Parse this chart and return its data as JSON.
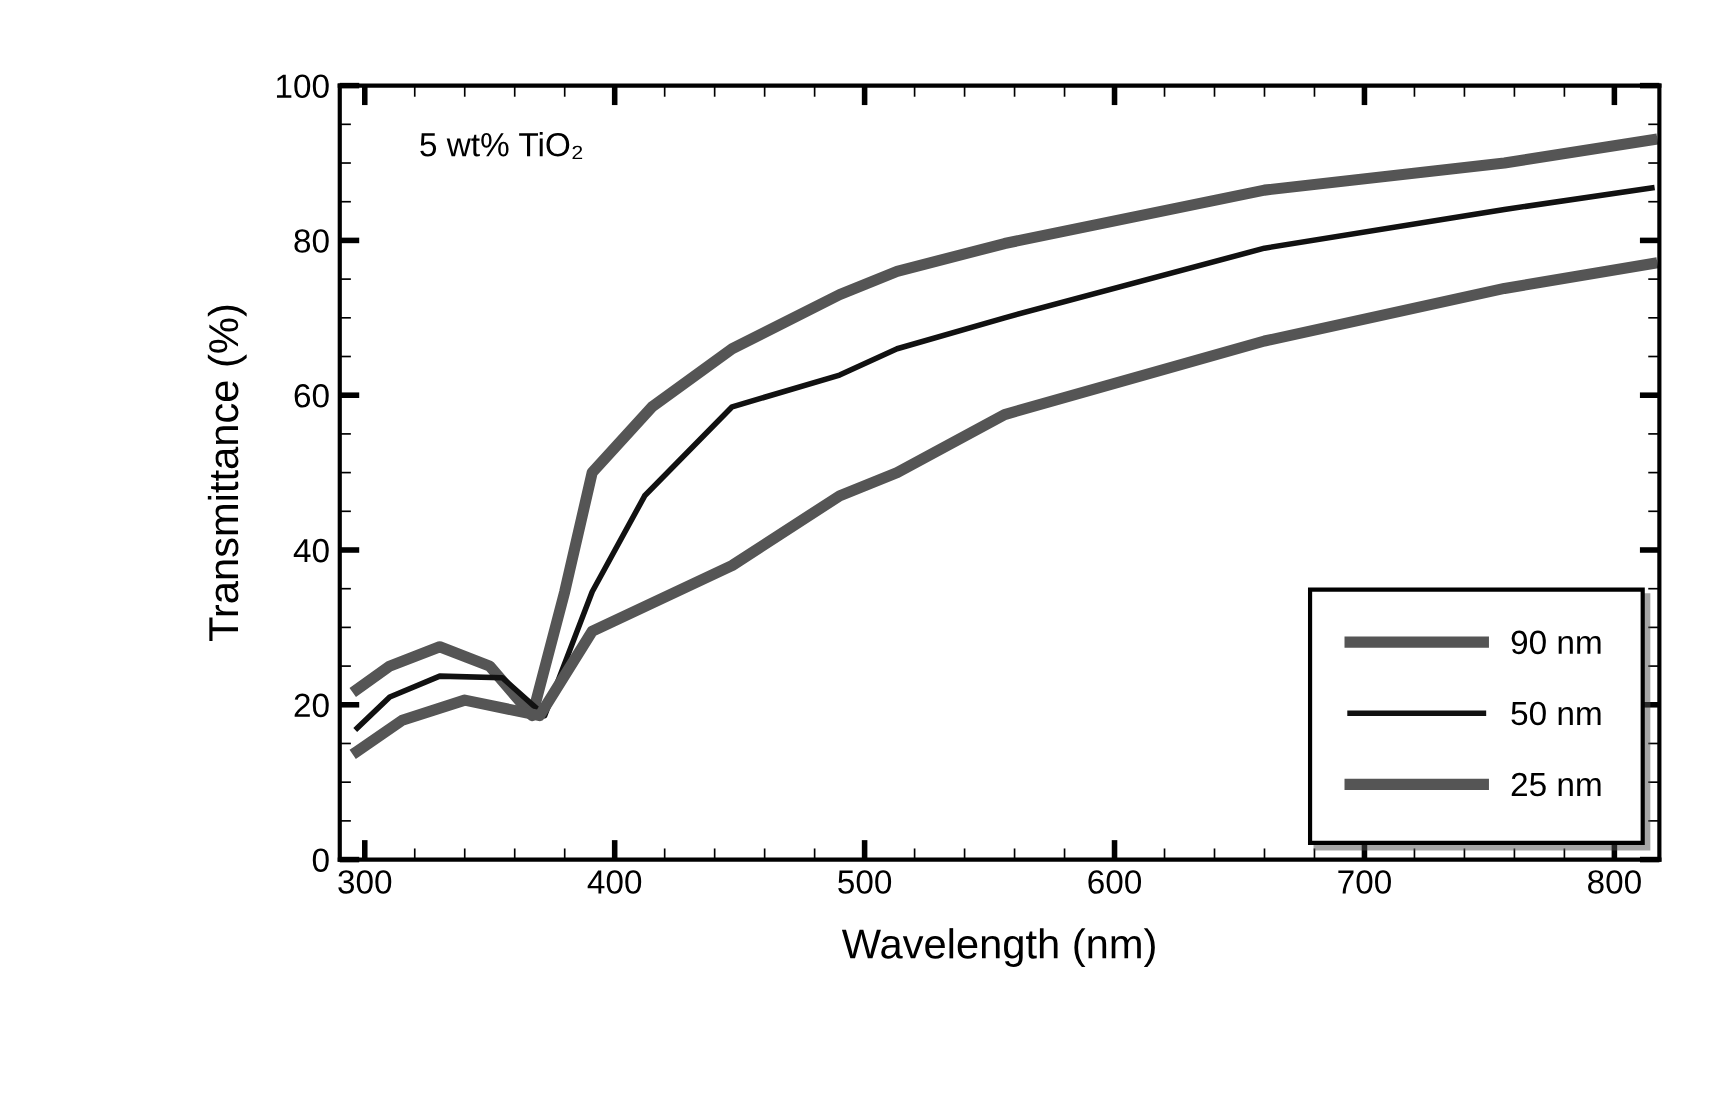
{
  "chart_data": {
    "type": "line",
    "xlabel": "Wavelength (nm)",
    "ylabel": "Transmittance (%)",
    "annotations": [
      "5 wt% TiO₂"
    ],
    "xlim": [
      290,
      818
    ],
    "ylim": [
      0,
      100
    ],
    "xticks": [
      300,
      400,
      500,
      600,
      700,
      800
    ],
    "yticks": [
      0,
      20,
      40,
      60,
      80,
      100
    ],
    "grid": false,
    "legend": "bottom right",
    "series": [
      {
        "name": "90 nm",
        "color": "#555555",
        "x": [
          297,
          310,
          330,
          350,
          367,
          380,
          391,
          415,
          447,
          490,
          513,
          556,
          660,
          756,
          815
        ],
        "values": [
          22,
          25,
          27.5,
          25,
          18.6,
          34.6,
          50,
          58.5,
          66,
          73,
          76,
          79.6,
          86.5,
          90,
          93
        ]
      },
      {
        "name": "50 nm",
        "color": "#111111",
        "x": [
          297,
          310,
          330,
          355,
          372,
          391,
          412,
          447,
          490,
          513,
          556,
          660,
          756,
          815
        ],
        "values": [
          17,
          21,
          23.7,
          23.5,
          18.6,
          34.6,
          47,
          58.5,
          62.6,
          66,
          70,
          79,
          84,
          86.8
        ]
      },
      {
        "name": "25 nm",
        "color": "#555555",
        "x": [
          297,
          315,
          340,
          370,
          391,
          447,
          490,
          513,
          556,
          660,
          756,
          815
        ],
        "values": [
          14,
          18,
          20.6,
          18.6,
          29.5,
          38,
          47,
          50,
          57.5,
          67,
          73.8,
          77
        ]
      }
    ]
  }
}
